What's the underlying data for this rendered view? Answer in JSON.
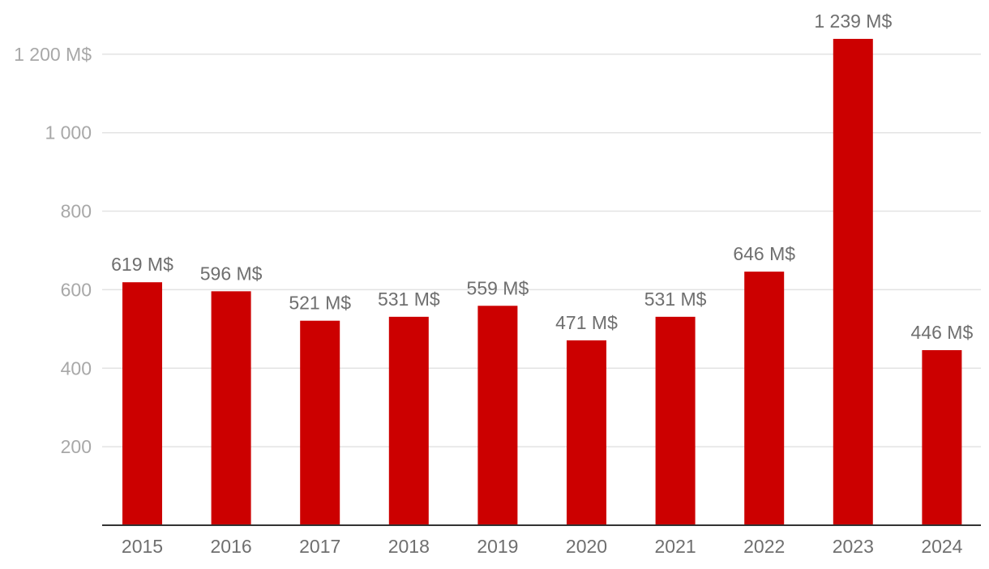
{
  "chart_data": {
    "type": "bar",
    "title": "",
    "xlabel": "",
    "ylabel": "",
    "categories": [
      "2015",
      "2016",
      "2017",
      "2018",
      "2019",
      "2020",
      "2021",
      "2022",
      "2023",
      "2024"
    ],
    "values": [
      619,
      596,
      521,
      531,
      559,
      471,
      531,
      646,
      1239,
      446
    ],
    "data_labels": [
      "619 M$",
      "596 M$",
      "521 M$",
      "531 M$",
      "559 M$",
      "471 M$",
      "531 M$",
      "646 M$",
      "1 239 M$",
      "446 M$"
    ],
    "ylim": [
      0,
      1200
    ],
    "yticks": [
      200,
      400,
      600,
      800,
      1000,
      1200
    ],
    "ytick_labels": [
      "200",
      "400",
      "600",
      "800",
      "1 000",
      "1 200 M$"
    ],
    "grid": true,
    "legend": "none",
    "bar_color": "#cc0000"
  }
}
